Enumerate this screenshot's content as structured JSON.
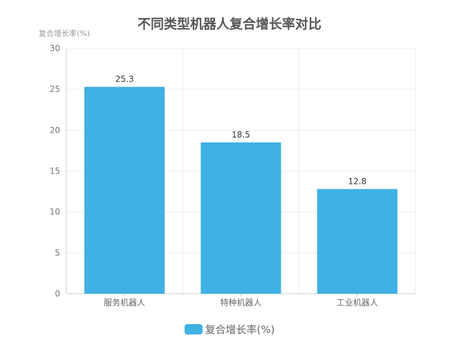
{
  "chart_data": {
    "type": "bar",
    "title": "不同类型机器人复合增长率对比",
    "ylabel": "复合增长率(%)",
    "categories": [
      "服务机器人",
      "特种机器人",
      "工业机器人"
    ],
    "series": [
      {
        "name": "复合增长率(%)",
        "values": [
          25.3,
          18.5,
          12.8
        ],
        "color": "#3fb1e3"
      }
    ],
    "y_ticks": [
      0,
      5,
      10,
      15,
      20,
      25,
      30
    ],
    "ylim": [
      0,
      30
    ],
    "grid": true,
    "legend": "bottom-center"
  }
}
